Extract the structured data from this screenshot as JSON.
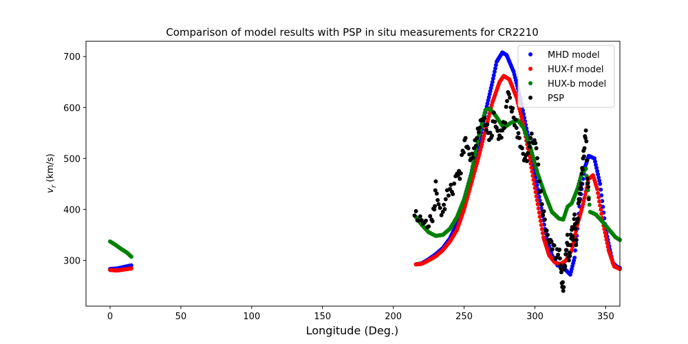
{
  "chart_data": {
    "type": "scatter",
    "title": "Comparison of model results with PSP in situ measurements for CR2210",
    "xlabel": "Longitude (Deg.)",
    "ylabel_prefix": "v",
    "ylabel_subscript": "r",
    "ylabel_suffix": " (km/s)",
    "xlim": [
      -17,
      360
    ],
    "ylim": [
      210,
      730
    ],
    "xticks": [
      0,
      50,
      100,
      150,
      200,
      250,
      300,
      350
    ],
    "yticks": [
      300,
      400,
      500,
      600,
      700
    ],
    "legend_position": "top-right",
    "series": [
      {
        "name": "MHD model",
        "color": "#0000ff",
        "points": [
          [
            0,
            283
          ],
          [
            5,
            284
          ],
          [
            10,
            287
          ],
          [
            15,
            290
          ],
          [
            216,
            292
          ],
          [
            220,
            294
          ],
          [
            225,
            302
          ],
          [
            230,
            312
          ],
          [
            235,
            324
          ],
          [
            240,
            343
          ],
          [
            245,
            372
          ],
          [
            250,
            420
          ],
          [
            255,
            470
          ],
          [
            260,
            525
          ],
          [
            265,
            590
          ],
          [
            270,
            650
          ],
          [
            273,
            690
          ],
          [
            277,
            708
          ],
          [
            280,
            703
          ],
          [
            285,
            670
          ],
          [
            290,
            615
          ],
          [
            295,
            545
          ],
          [
            300,
            470
          ],
          [
            305,
            395
          ],
          [
            308,
            345
          ],
          [
            312,
            310
          ],
          [
            316,
            290
          ],
          [
            320,
            286
          ],
          [
            325,
            272
          ],
          [
            328,
            305
          ],
          [
            332,
            420
          ],
          [
            335,
            480
          ],
          [
            338,
            505
          ],
          [
            342,
            500
          ],
          [
            346,
            450
          ],
          [
            350,
            360
          ],
          [
            355,
            295
          ],
          [
            358,
            287
          ],
          [
            360,
            285
          ]
        ]
      },
      {
        "name": "HUX-f model",
        "color": "#ff0000",
        "points": [
          [
            0,
            281
          ],
          [
            5,
            280
          ],
          [
            10,
            282
          ],
          [
            15,
            284
          ],
          [
            216,
            292
          ],
          [
            220,
            293
          ],
          [
            225,
            300
          ],
          [
            230,
            308
          ],
          [
            235,
            320
          ],
          [
            240,
            337
          ],
          [
            245,
            360
          ],
          [
            250,
            400
          ],
          [
            255,
            450
          ],
          [
            260,
            500
          ],
          [
            265,
            555
          ],
          [
            270,
            610
          ],
          [
            275,
            650
          ],
          [
            278,
            662
          ],
          [
            282,
            655
          ],
          [
            287,
            620
          ],
          [
            292,
            565
          ],
          [
            297,
            490
          ],
          [
            302,
            410
          ],
          [
            306,
            345
          ],
          [
            310,
            310
          ],
          [
            314,
            296
          ],
          [
            318,
            292
          ],
          [
            322,
            300
          ],
          [
            326,
            320
          ],
          [
            330,
            370
          ],
          [
            334,
            410
          ],
          [
            338,
            460
          ],
          [
            341,
            467
          ],
          [
            344,
            440
          ],
          [
            348,
            375
          ],
          [
            352,
            320
          ],
          [
            356,
            288
          ],
          [
            360,
            283
          ]
        ]
      },
      {
        "name": "HUX-b model",
        "color": "#008000",
        "points": [
          [
            0,
            337
          ],
          [
            4,
            330
          ],
          [
            8,
            322
          ],
          [
            12,
            315
          ],
          [
            15,
            307
          ],
          [
            216,
            385
          ],
          [
            220,
            370
          ],
          [
            225,
            355
          ],
          [
            230,
            348
          ],
          [
            235,
            350
          ],
          [
            240,
            362
          ],
          [
            245,
            385
          ],
          [
            250,
            420
          ],
          [
            255,
            470
          ],
          [
            260,
            540
          ],
          [
            265,
            595
          ],
          [
            268,
            598
          ],
          [
            272,
            585
          ],
          [
            278,
            560
          ],
          [
            283,
            570
          ],
          [
            288,
            575
          ],
          [
            292,
            560
          ],
          [
            297,
            520
          ],
          [
            302,
            470
          ],
          [
            307,
            430
          ],
          [
            312,
            395
          ],
          [
            317,
            382
          ],
          [
            320,
            380
          ],
          [
            323,
            405
          ],
          [
            326,
            412
          ],
          [
            330,
            440
          ],
          [
            333,
            470
          ],
          [
            336,
            480
          ],
          [
            339,
            395
          ],
          [
            343,
            390
          ],
          [
            348,
            375
          ],
          [
            353,
            358
          ],
          [
            357,
            345
          ],
          [
            360,
            340
          ]
        ]
      },
      {
        "name": "PSP",
        "color": "#000000",
        "points": [
          [
            215,
            388
          ],
          [
            218,
            378
          ],
          [
            221,
            372
          ],
          [
            224,
            365
          ],
          [
            227,
            380
          ],
          [
            229,
            400
          ],
          [
            230,
            455
          ],
          [
            232,
            410
          ],
          [
            235,
            395
          ],
          [
            237,
            420
          ],
          [
            240,
            440
          ],
          [
            242,
            430
          ],
          [
            245,
            470
          ],
          [
            247,
            460
          ],
          [
            249,
            515
          ],
          [
            251,
            540
          ],
          [
            253,
            520
          ],
          [
            255,
            500
          ],
          [
            257,
            520
          ],
          [
            259,
            540
          ],
          [
            261,
            560
          ],
          [
            263,
            575
          ],
          [
            265,
            565
          ],
          [
            267,
            550
          ],
          [
            269,
            540
          ],
          [
            271,
            590
          ],
          [
            273,
            560
          ],
          [
            275,
            545
          ],
          [
            277,
            555
          ],
          [
            279,
            570
          ],
          [
            281,
            630
          ],
          [
            283,
            600
          ],
          [
            285,
            580
          ],
          [
            287,
            560
          ],
          [
            289,
            540
          ],
          [
            291,
            520
          ],
          [
            293,
            500
          ],
          [
            295,
            510
          ],
          [
            297,
            540
          ],
          [
            299,
            530
          ],
          [
            301,
            520
          ],
          [
            303,
            455
          ],
          [
            305,
            410
          ],
          [
            307,
            380
          ],
          [
            309,
            350
          ],
          [
            311,
            340
          ],
          [
            313,
            330
          ],
          [
            315,
            305
          ],
          [
            317,
            320
          ],
          [
            318,
            290
          ],
          [
            319,
            255
          ],
          [
            320,
            240
          ],
          [
            321,
            290
          ],
          [
            322,
            320
          ],
          [
            323,
            350
          ],
          [
            324,
            300
          ],
          [
            325,
            330
          ],
          [
            326,
            360
          ],
          [
            327,
            340
          ],
          [
            328,
            390
          ],
          [
            329,
            330
          ],
          [
            330,
            380
          ],
          [
            331,
            420
          ],
          [
            332,
            440
          ],
          [
            333,
            470
          ],
          [
            334,
            500
          ],
          [
            335,
            520
          ],
          [
            336,
            555
          ],
          [
            337,
            460
          ],
          [
            338,
            420
          ]
        ]
      }
    ]
  }
}
